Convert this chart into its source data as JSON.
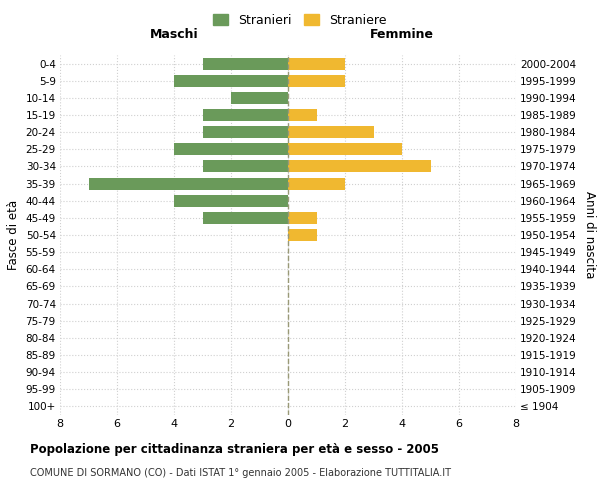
{
  "age_groups": [
    "100+",
    "95-99",
    "90-94",
    "85-89",
    "80-84",
    "75-79",
    "70-74",
    "65-69",
    "60-64",
    "55-59",
    "50-54",
    "45-49",
    "40-44",
    "35-39",
    "30-34",
    "25-29",
    "20-24",
    "15-19",
    "10-14",
    "5-9",
    "0-4"
  ],
  "birth_years": [
    "≤ 1904",
    "1905-1909",
    "1910-1914",
    "1915-1919",
    "1920-1924",
    "1925-1929",
    "1930-1934",
    "1935-1939",
    "1940-1944",
    "1945-1949",
    "1950-1954",
    "1955-1959",
    "1960-1964",
    "1965-1969",
    "1970-1974",
    "1975-1979",
    "1980-1984",
    "1985-1989",
    "1990-1994",
    "1995-1999",
    "2000-2004"
  ],
  "maschi": [
    0,
    0,
    0,
    0,
    0,
    0,
    0,
    0,
    0,
    0,
    0,
    3,
    4,
    7,
    3,
    4,
    3,
    3,
    2,
    4,
    3
  ],
  "femmine": [
    0,
    0,
    0,
    0,
    0,
    0,
    0,
    0,
    0,
    0,
    1,
    1,
    0,
    2,
    5,
    4,
    3,
    1,
    0,
    2,
    2
  ],
  "color_maschi": "#6a9a5a",
  "color_femmine": "#f0b830",
  "title": "Popolazione per cittadinanza straniera per età e sesso - 2005",
  "subtitle": "COMUNE DI SORMANO (CO) - Dati ISTAT 1° gennaio 2005 - Elaborazione TUTTITALIA.IT",
  "xlabel_left": "Maschi",
  "xlabel_right": "Femmine",
  "ylabel_left": "Fasce di età",
  "ylabel_right": "Anni di nascita",
  "legend_maschi": "Stranieri",
  "legend_femmine": "Straniere",
  "xlim": 8,
  "background_color": "#ffffff",
  "grid_color": "#d0d0d0"
}
